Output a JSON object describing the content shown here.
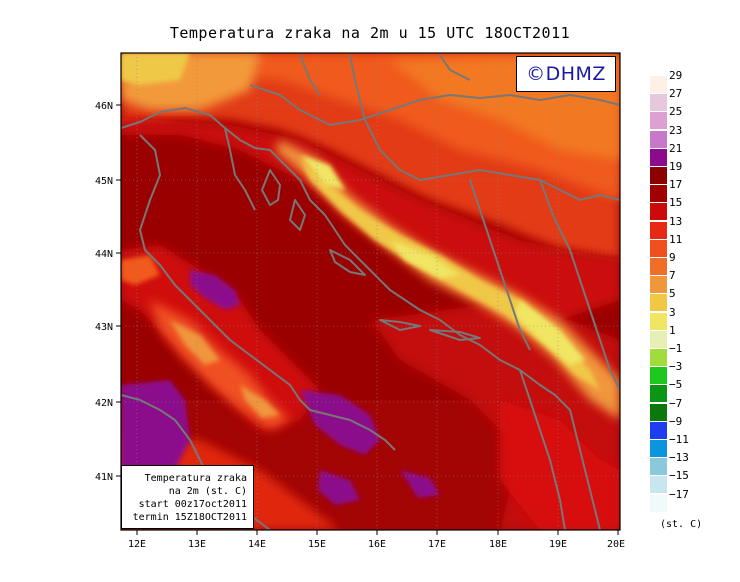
{
  "title": "Temperatura zraka na 2m u 15 UTC 18OCT2011",
  "copyright": "©DHMZ",
  "axes": {
    "lon_labels": [
      "12E",
      "13E",
      "14E",
      "15E",
      "16E",
      "17E",
      "18E",
      "19E",
      "20E"
    ],
    "lat_labels": [
      "46N",
      "45N",
      "44N",
      "43N",
      "42N",
      "41N"
    ]
  },
  "info_box": {
    "line1": "Temperatura zraka",
    "line2": "na 2m (st. C)",
    "line3": "start 00z17oct2011",
    "line4": "termin 15Z18OCT2011"
  },
  "legend": {
    "unit": "(st. C)",
    "items": [
      {
        "label": "29",
        "color": "#fff0e6"
      },
      {
        "label": "27",
        "color": "#e6c8dc"
      },
      {
        "label": "25",
        "color": "#dca0d2"
      },
      {
        "label": "23",
        "color": "#c878c8"
      },
      {
        "label": "21",
        "color": "#8c0a8c"
      },
      {
        "label": "19",
        "color": "#8c0000"
      },
      {
        "label": "17",
        "color": "#a00000"
      },
      {
        "label": "15",
        "color": "#cd0a0a"
      },
      {
        "label": "13",
        "color": "#e62814"
      },
      {
        "label": "11",
        "color": "#f0501e"
      },
      {
        "label": "9",
        "color": "#f06e28"
      },
      {
        "label": "7",
        "color": "#f0963c"
      },
      {
        "label": "5",
        "color": "#f0c846"
      },
      {
        "label": "3",
        "color": "#f0e664"
      },
      {
        "label": "1",
        "color": "#e6f0b4"
      },
      {
        "label": "−1",
        "color": "#a0dc3c"
      },
      {
        "label": "−3",
        "color": "#1ec81e"
      },
      {
        "label": "−5",
        "color": "#0a9614"
      },
      {
        "label": "−7",
        "color": "#0a780a"
      },
      {
        "label": "−9",
        "color": "#1e3cf0"
      },
      {
        "label": "−11",
        "color": "#0a96dc"
      },
      {
        "label": "−13",
        "color": "#8cc8dc"
      },
      {
        "label": "−15",
        "color": "#c8e6f0"
      },
      {
        "label": "−17",
        "color": "#f0fafa"
      }
    ]
  }
}
